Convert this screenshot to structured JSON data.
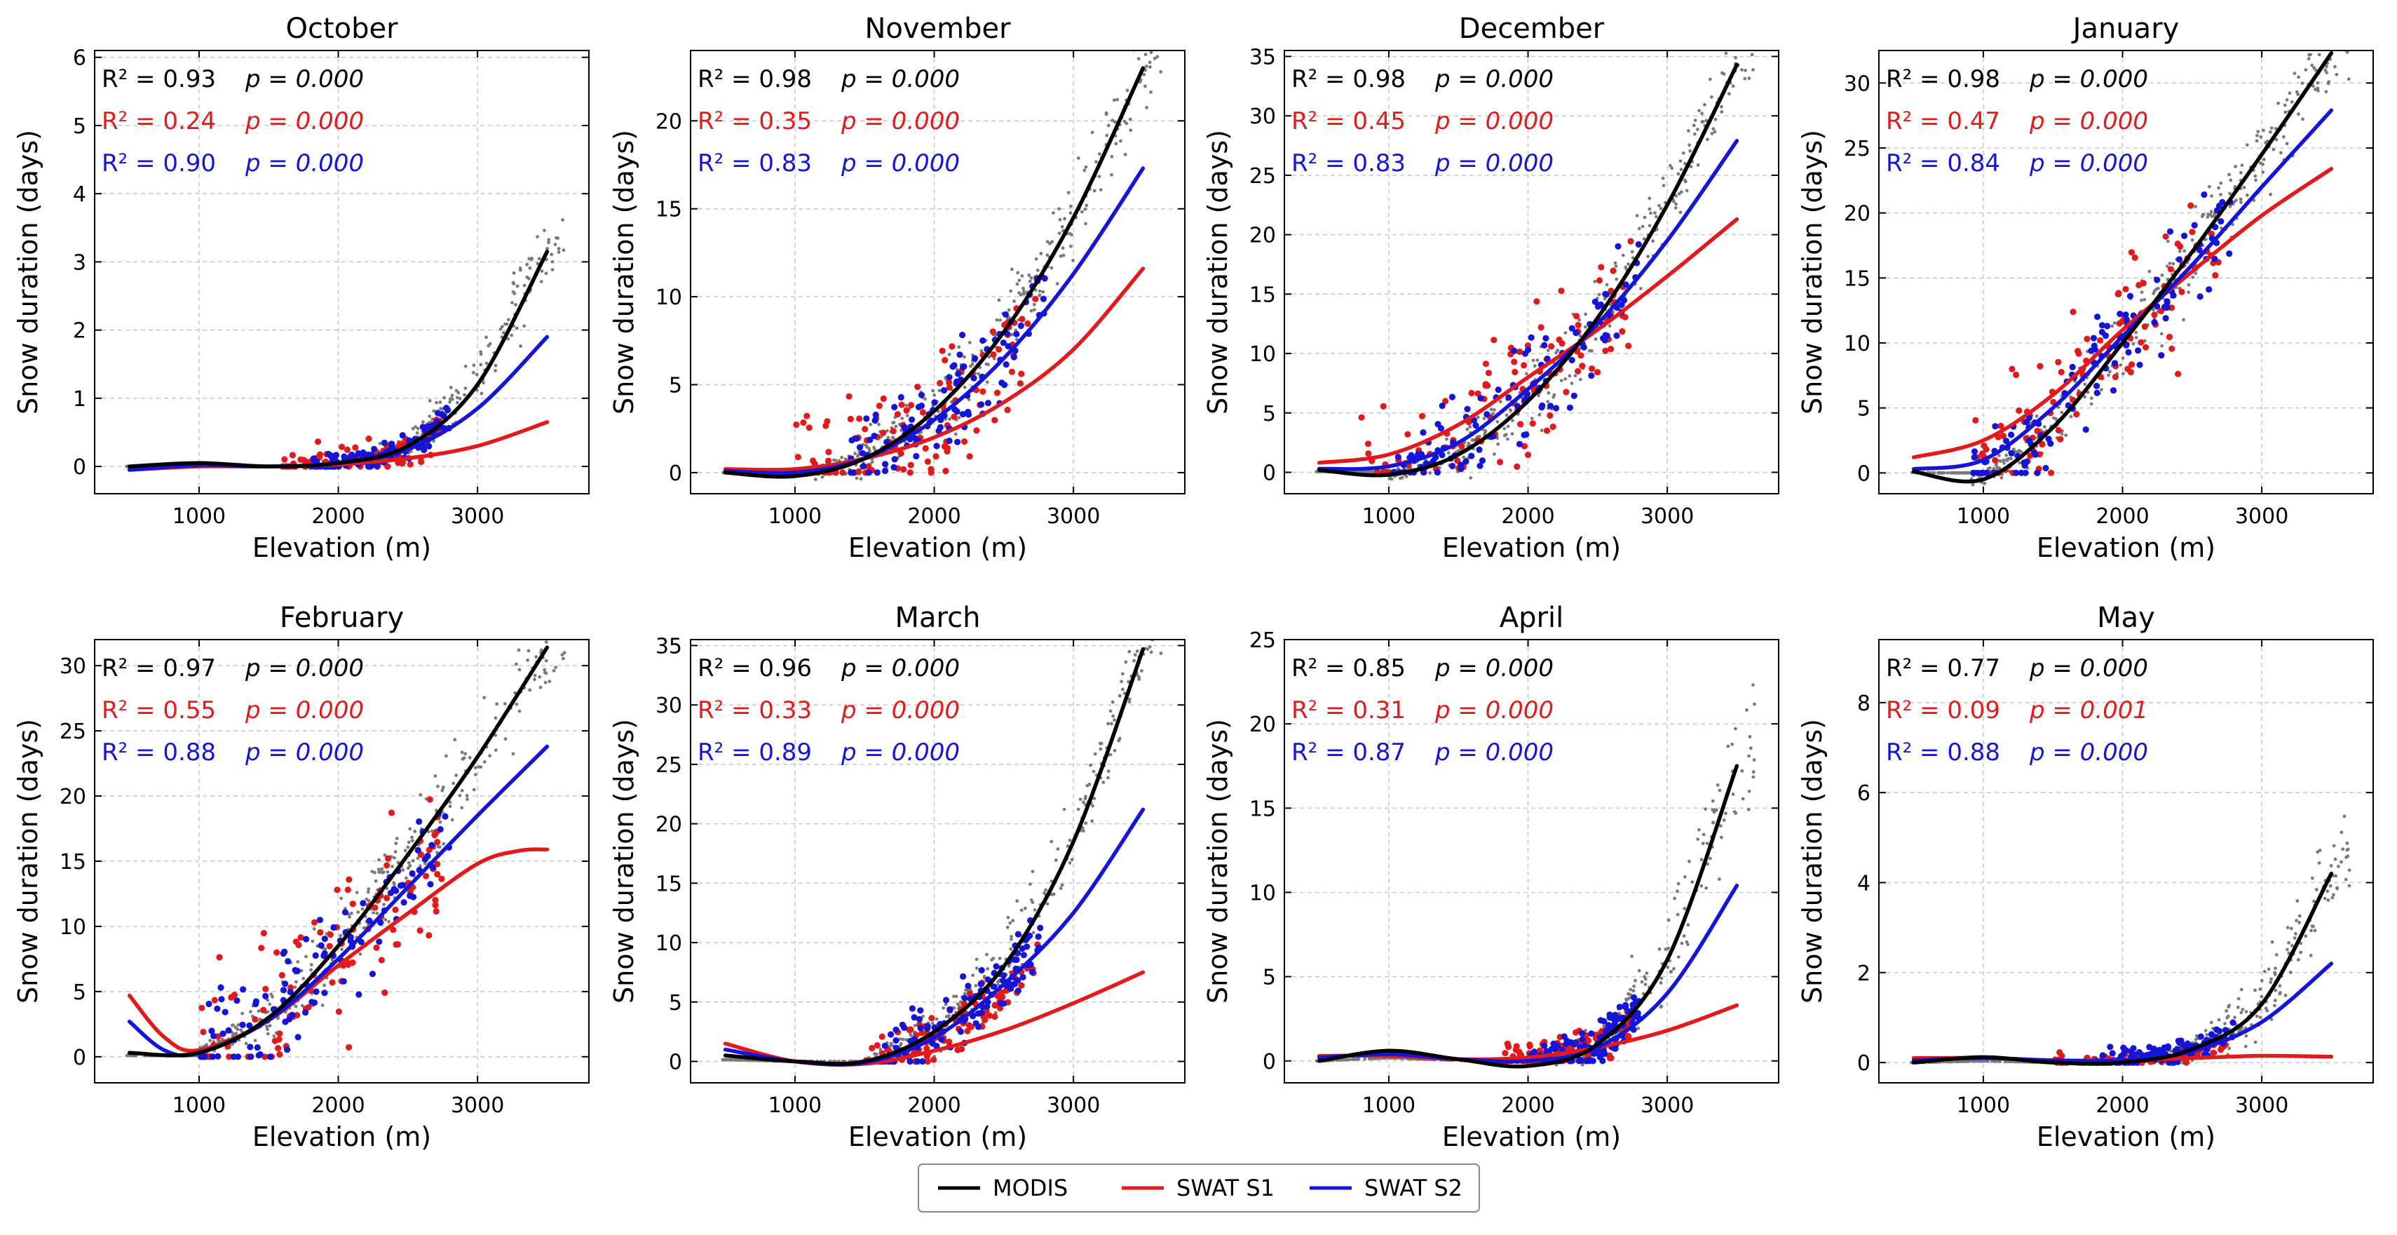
{
  "colors": {
    "modis": "#000000",
    "s1": "#e31a1c",
    "s2": "#1515d8",
    "scatter": "#7a7a7a"
  },
  "legend": [
    "MODIS",
    "SWAT S1",
    "SWAT S2"
  ],
  "chart_data": [
    {
      "type": "scatter",
      "title": "October",
      "xlabel": "Elevation (m)",
      "ylabel": "Snow duration (days)",
      "xlim": [
        250,
        3800
      ],
      "ylim": [
        -0.4,
        6.1
      ],
      "xticks": [
        1000,
        2000,
        3000
      ],
      "yticks": [
        0,
        1,
        2,
        3,
        4,
        5,
        6
      ],
      "stats": [
        {
          "series": "MODIS",
          "r2": "R² = 0.93",
          "p": "p = 0.000"
        },
        {
          "series": "SWAT S1",
          "r2": "R² = 0.24",
          "p": "p = 0.000"
        },
        {
          "series": "SWAT S2",
          "r2": "R² = 0.90",
          "p": "p = 0.000"
        }
      ],
      "fits": [
        {
          "name": "MODIS",
          "x": [
            500,
            1000,
            1500,
            2000,
            2500,
            3000,
            3500
          ],
          "y": [
            0.0,
            0.05,
            0.0,
            0.05,
            0.3,
            1.2,
            3.15
          ]
        },
        {
          "name": "SWAT S1",
          "x": [
            500,
            1000,
            1500,
            2000,
            2500,
            3000,
            3500
          ],
          "y": [
            -0.05,
            0.0,
            0.0,
            0.03,
            0.12,
            0.3,
            0.65
          ]
        },
        {
          "name": "SWAT S2",
          "x": [
            500,
            1000,
            1500,
            2000,
            2500,
            3000,
            3500
          ],
          "y": [
            -0.05,
            0.02,
            0.0,
            0.05,
            0.25,
            0.85,
            1.9
          ]
        }
      ],
      "scatter": {
        "x0": 2100,
        "y0": 0.15,
        "k": 3.0,
        "spread": 0.3
      },
      "s1_points": {
        "x0": 1600,
        "y0": 0.05,
        "k": 0.65,
        "spread": 0.25
      },
      "s2_points": {
        "x0": 1800,
        "y0": 0.1,
        "k": 1.9,
        "spread": 0.2
      }
    },
    {
      "type": "scatter",
      "title": "November",
      "xlabel": "Elevation (m)",
      "ylabel": "",
      "xlim": [
        250,
        3800
      ],
      "ylim": [
        -1.2,
        24.0
      ],
      "xticks": [
        1000,
        2000,
        3000
      ],
      "yticks": [
        0,
        5,
        10,
        15,
        20
      ],
      "stats": [
        {
          "series": "MODIS",
          "r2": "R² = 0.98",
          "p": "p = 0.000"
        },
        {
          "series": "SWAT S1",
          "r2": "R² = 0.35",
          "p": "p = 0.000"
        },
        {
          "series": "SWAT S2",
          "r2": "R² = 0.83",
          "p": "p = 0.000"
        }
      ],
      "fits": [
        {
          "name": "MODIS",
          "x": [
            500,
            1000,
            1500,
            2000,
            2500,
            3000,
            3500
          ],
          "y": [
            0.0,
            -0.2,
            0.8,
            3.5,
            8.0,
            14.5,
            23.0
          ]
        },
        {
          "name": "SWAT S1",
          "x": [
            500,
            1000,
            1500,
            2000,
            2500,
            3000,
            3500
          ],
          "y": [
            0.2,
            0.2,
            0.8,
            2.0,
            4.0,
            7.0,
            11.6
          ]
        },
        {
          "name": "SWAT S2",
          "x": [
            500,
            1000,
            1500,
            2000,
            2500,
            3000,
            3500
          ],
          "y": [
            0.1,
            0.0,
            0.8,
            3.0,
            6.5,
            11.3,
            17.3
          ]
        }
      ],
      "scatter": {
        "x0": 1100,
        "y0": 0.0,
        "k": 22.0,
        "spread": 1.5
      },
      "s1_points": {
        "x0": 1000,
        "y0": 0.0,
        "k": 12.0,
        "spread": 3.5
      },
      "s2_points": {
        "x0": 1400,
        "y0": 0.5,
        "k": 16.0,
        "spread": 2.5
      }
    },
    {
      "type": "scatter",
      "title": "December",
      "xlabel": "Elevation (m)",
      "ylabel": "",
      "xlim": [
        250,
        3800
      ],
      "ylim": [
        -1.8,
        35.5
      ],
      "xticks": [
        1000,
        2000,
        3000
      ],
      "yticks": [
        0,
        5,
        10,
        15,
        20,
        25,
        30,
        35
      ],
      "stats": [
        {
          "series": "MODIS",
          "r2": "R² = 0.98",
          "p": "p = 0.000"
        },
        {
          "series": "SWAT S1",
          "r2": "R² = 0.45",
          "p": "p = 0.000"
        },
        {
          "series": "SWAT S2",
          "r2": "R² = 0.83",
          "p": "p = 0.000"
        }
      ],
      "fits": [
        {
          "name": "MODIS",
          "x": [
            500,
            1000,
            1500,
            2000,
            2500,
            3000,
            3500
          ],
          "y": [
            0.2,
            -0.2,
            1.5,
            6.0,
            13.0,
            22.5,
            34.3
          ]
        },
        {
          "name": "SWAT S1",
          "x": [
            500,
            1000,
            1500,
            2000,
            2500,
            3000,
            3500
          ],
          "y": [
            0.8,
            1.5,
            4.0,
            8.0,
            12.0,
            16.5,
            21.3
          ]
        },
        {
          "name": "SWAT S2",
          "x": [
            500,
            1000,
            1500,
            2000,
            2500,
            3000,
            3500
          ],
          "y": [
            0.3,
            0.5,
            2.5,
            7.0,
            12.5,
            19.5,
            27.9
          ]
        }
      ],
      "scatter": {
        "x0": 1000,
        "y0": 0.0,
        "k": 32.0,
        "spread": 2.0
      },
      "s1_points": {
        "x0": 800,
        "y0": 1.0,
        "k": 20.0,
        "spread": 6.0
      },
      "s2_points": {
        "x0": 1000,
        "y0": 0.5,
        "k": 25.0,
        "spread": 4.0
      }
    },
    {
      "type": "scatter",
      "title": "January",
      "xlabel": "Elevation (m)",
      "ylabel": "Snow duration (days)",
      "xlim": [
        250,
        3800
      ],
      "ylim": [
        -1.6,
        32.5
      ],
      "xticks": [
        1000,
        2000,
        3000
      ],
      "yticks": [
        0,
        5,
        10,
        15,
        20,
        25,
        30
      ],
      "stats": [
        {
          "series": "MODIS",
          "r2": "R² = 0.98",
          "p": "p = 0.000"
        },
        {
          "series": "SWAT S1",
          "r2": "R² = 0.47",
          "p": "p = 0.000"
        },
        {
          "series": "SWAT S2",
          "r2": "R² = 0.84",
          "p": "p = 0.000"
        }
      ],
      "fits": [
        {
          "name": "MODIS",
          "x": [
            500,
            1000,
            1500,
            2000,
            2500,
            3000,
            3500
          ],
          "y": [
            0.1,
            -0.5,
            3.5,
            10.0,
            17.0,
            24.5,
            32.3
          ]
        },
        {
          "name": "SWAT S1",
          "x": [
            500,
            1000,
            1500,
            2000,
            2500,
            3000,
            3500
          ],
          "y": [
            1.2,
            2.5,
            6.0,
            11.0,
            15.5,
            19.8,
            23.4
          ]
        },
        {
          "name": "SWAT S2",
          "x": [
            500,
            1000,
            1500,
            2000,
            2500,
            3000,
            3500
          ],
          "y": [
            0.3,
            1.0,
            5.0,
            10.5,
            16.0,
            22.0,
            27.9
          ]
        }
      ],
      "scatter": {
        "x0": 900,
        "y0": 0.0,
        "k": 31.0,
        "spread": 2.0
      },
      "s1_points": {
        "x0": 900,
        "y0": 2.0,
        "k": 22.0,
        "spread": 5.5
      },
      "s2_points": {
        "x0": 900,
        "y0": 1.0,
        "k": 26.0,
        "spread": 4.0
      }
    },
    {
      "type": "scatter",
      "title": "February",
      "xlabel": "Elevation (m)",
      "ylabel": "Snow duration (days)",
      "xlim": [
        250,
        3800
      ],
      "ylim": [
        -2.0,
        32.0
      ],
      "xticks": [
        1000,
        2000,
        3000
      ],
      "yticks": [
        0,
        5,
        10,
        15,
        20,
        25,
        30
      ],
      "stats": [
        {
          "series": "MODIS",
          "r2": "R² = 0.97",
          "p": "p = 0.000"
        },
        {
          "series": "SWAT S1",
          "r2": "R² = 0.55",
          "p": "p = 0.000"
        },
        {
          "series": "SWAT S2",
          "r2": "R² = 0.88",
          "p": "p = 0.000"
        }
      ],
      "fits": [
        {
          "name": "MODIS",
          "x": [
            500,
            1000,
            1500,
            2000,
            2500,
            3000,
            3500
          ],
          "y": [
            0.3,
            0.3,
            3.0,
            8.5,
            15.5,
            23.0,
            31.4
          ]
        },
        {
          "name": "SWAT S1",
          "x": [
            500,
            750,
            1000,
            1500,
            2000,
            2500,
            3000,
            3300,
            3500
          ],
          "y": [
            4.7,
            1.5,
            0.5,
            2.8,
            7.0,
            11.0,
            14.8,
            15.8,
            15.9
          ]
        },
        {
          "name": "SWAT S2",
          "x": [
            500,
            750,
            1000,
            1500,
            2000,
            2500,
            3000,
            3500
          ],
          "y": [
            2.7,
            0.5,
            0.3,
            2.8,
            7.5,
            13.0,
            18.5,
            23.8
          ]
        }
      ],
      "scatter": {
        "x0": 1000,
        "y0": 0.0,
        "k": 30.0,
        "spread": 2.2
      },
      "s1_points": {
        "x0": 1000,
        "y0": 0.5,
        "k": 18.0,
        "spread": 6.0
      },
      "s2_points": {
        "x0": 1000,
        "y0": 0.3,
        "k": 23.0,
        "spread": 4.0
      }
    },
    {
      "type": "scatter",
      "title": "March",
      "xlabel": "Elevation (m)",
      "ylabel": "Snow duration (days)",
      "xlim": [
        250,
        3800
      ],
      "ylim": [
        -1.8,
        35.5
      ],
      "xticks": [
        1000,
        2000,
        3000
      ],
      "yticks": [
        0,
        5,
        10,
        15,
        20,
        25,
        30,
        35
      ],
      "stats": [
        {
          "series": "MODIS",
          "r2": "R² = 0.96",
          "p": "p = 0.000"
        },
        {
          "series": "SWAT S1",
          "r2": "R² = 0.33",
          "p": "p = 0.000"
        },
        {
          "series": "SWAT S2",
          "r2": "R² = 0.89",
          "p": "p = 0.000"
        }
      ],
      "fits": [
        {
          "name": "MODIS",
          "x": [
            500,
            1000,
            1500,
            2000,
            2500,
            3000,
            3500
          ],
          "y": [
            0.5,
            0.0,
            0.0,
            2.5,
            8.0,
            18.5,
            34.7
          ]
        },
        {
          "name": "SWAT S1",
          "x": [
            500,
            1000,
            1500,
            2000,
            2500,
            3000,
            3500
          ],
          "y": [
            1.5,
            0.0,
            -0.2,
            0.9,
            2.6,
            4.9,
            7.5
          ]
        },
        {
          "name": "SWAT S2",
          "x": [
            500,
            1000,
            1500,
            2000,
            2500,
            3000,
            3500
          ],
          "y": [
            1.0,
            0.0,
            -0.1,
            2.0,
            6.5,
            12.5,
            21.2
          ]
        }
      ],
      "scatter": {
        "x0": 1500,
        "y0": 0.0,
        "k": 33.0,
        "spread": 2.0
      },
      "s1_points": {
        "x0": 1500,
        "y0": 0.2,
        "k": 8.0,
        "spread": 2.0
      },
      "s2_points": {
        "x0": 1600,
        "y0": 0.5,
        "k": 24.0,
        "spread": 2.5
      }
    },
    {
      "type": "scatter",
      "title": "April",
      "xlabel": "Elevation (m)",
      "ylabel": "Snow duration (days)",
      "xlim": [
        250,
        3800
      ],
      "ylim": [
        -1.3,
        25.0
      ],
      "xticks": [
        1000,
        2000,
        3000
      ],
      "yticks": [
        0,
        5,
        10,
        15,
        20,
        25
      ],
      "stats": [
        {
          "series": "MODIS",
          "r2": "R² = 0.85",
          "p": "p = 0.000"
        },
        {
          "series": "SWAT S1",
          "r2": "R² = 0.31",
          "p": "p = 0.000"
        },
        {
          "series": "SWAT S2",
          "r2": "R² = 0.87",
          "p": "p = 0.000"
        }
      ],
      "fits": [
        {
          "name": "MODIS",
          "x": [
            500,
            1000,
            1500,
            2000,
            2500,
            3000,
            3500
          ],
          "y": [
            0.0,
            0.6,
            0.1,
            -0.3,
            1.0,
            6.0,
            17.5
          ]
        },
        {
          "name": "SWAT S1",
          "x": [
            500,
            1000,
            1500,
            2000,
            2500,
            3000,
            3500
          ],
          "y": [
            0.3,
            0.3,
            0.1,
            0.2,
            0.8,
            1.8,
            3.3
          ]
        },
        {
          "name": "SWAT S2",
          "x": [
            500,
            1000,
            1500,
            2000,
            2500,
            3000,
            3500
          ],
          "y": [
            0.2,
            0.4,
            0.1,
            0.0,
            0.8,
            4.0,
            10.4
          ]
        }
      ],
      "scatter": {
        "x0": 2200,
        "y0": 0.2,
        "k": 22.0,
        "spread": 2.5
      },
      "s1_points": {
        "x0": 1800,
        "y0": 0.2,
        "k": 4.0,
        "spread": 1.2
      },
      "s2_points": {
        "x0": 2000,
        "y0": 0.2,
        "k": 6.0,
        "spread": 1.5
      }
    },
    {
      "type": "scatter",
      "title": "May",
      "xlabel": "Elevation (m)",
      "ylabel": "Snow duration (days)",
      "xlim": [
        250,
        3800
      ],
      "ylim": [
        -0.45,
        9.4
      ],
      "xticks": [
        1000,
        2000,
        3000
      ],
      "yticks": [
        0,
        2,
        4,
        6,
        8
      ],
      "stats": [
        {
          "series": "MODIS",
          "r2": "R² = 0.77",
          "p": "p = 0.000"
        },
        {
          "series": "SWAT S1",
          "r2": "R² = 0.09",
          "p": "p = 0.001"
        },
        {
          "series": "SWAT S2",
          "r2": "R² = 0.88",
          "p": "p = 0.000"
        }
      ],
      "fits": [
        {
          "name": "MODIS",
          "x": [
            500,
            1000,
            1500,
            2000,
            2500,
            3000,
            3500
          ],
          "y": [
            0.0,
            0.12,
            0.0,
            0.0,
            0.3,
            1.3,
            4.2
          ]
        },
        {
          "name": "SWAT S1",
          "x": [
            500,
            1000,
            1500,
            2000,
            2500,
            3000,
            3500
          ],
          "y": [
            0.1,
            0.1,
            0.05,
            0.05,
            0.1,
            0.15,
            0.13
          ]
        },
        {
          "name": "SWAT S2",
          "x": [
            500,
            1000,
            1500,
            2000,
            2500,
            3000,
            3500
          ],
          "y": [
            0.05,
            0.1,
            0.05,
            0.05,
            0.25,
            0.9,
            2.2
          ]
        }
      ],
      "scatter": {
        "x0": 2200,
        "y0": 0.1,
        "k": 6.5,
        "spread": 0.6
      },
      "s1_points": {
        "x0": 1500,
        "y0": 0.05,
        "k": 0.3,
        "spread": 0.15
      },
      "s2_points": {
        "x0": 1800,
        "y0": 0.05,
        "k": 1.5,
        "spread": 0.3
      }
    }
  ]
}
